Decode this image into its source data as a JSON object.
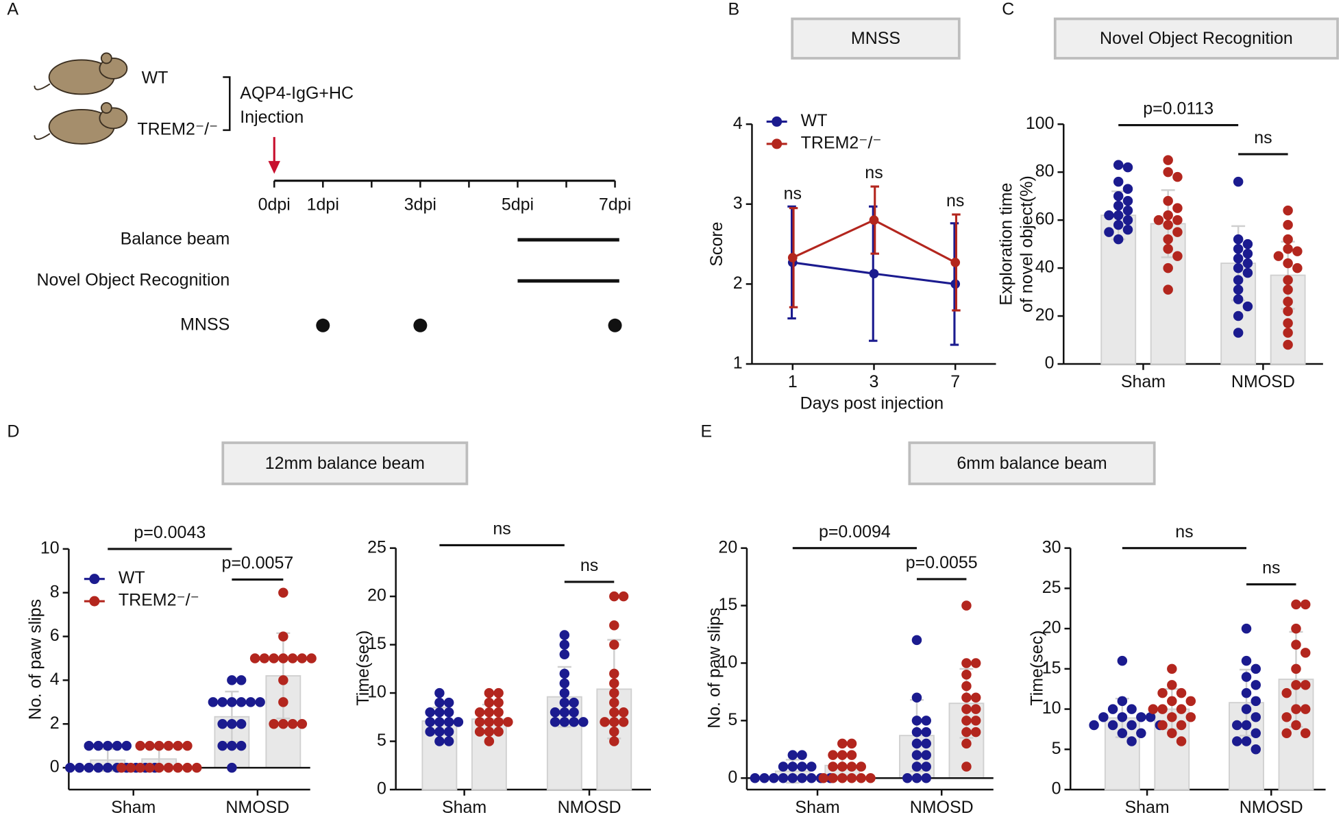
{
  "chart_data": [
    {
      "type": "timeline",
      "panel": "A",
      "subjects": [
        "WT",
        "TREM2⁻/⁻"
      ],
      "treatment": [
        "AQP4-IgG+HC",
        "Injection"
      ],
      "injection": 0,
      "xlim": [
        0,
        7
      ],
      "xticks": [
        {
          "value": 0,
          "label": "0dpi"
        },
        {
          "value": 1,
          "label": "1dpi"
        },
        {
          "value": 2,
          "label": null
        },
        {
          "value": 3,
          "label": "3dpi"
        },
        {
          "value": 4,
          "label": null
        },
        {
          "value": 5,
          "label": "5dpi"
        },
        {
          "value": 6,
          "label": null
        },
        {
          "value": 7,
          "label": "7dpi"
        }
      ],
      "rows": [
        {
          "label": "Balance beam",
          "span": [
            5,
            7
          ]
        },
        {
          "label": "Novel Object Recognition",
          "span": [
            5,
            7
          ]
        },
        {
          "label": "MNSS",
          "points": [
            1,
            3,
            7
          ]
        }
      ]
    },
    {
      "type": "line",
      "panel": "B",
      "title": "MNSS",
      "x_label": "Days post injection",
      "y_label": "Score",
      "categories": [
        "1",
        "3",
        "7"
      ],
      "ylim": [
        1,
        4
      ],
      "yticks": [
        1,
        2,
        3,
        4
      ],
      "legend": "upper left",
      "series": [
        {
          "name": "WT",
          "color": "#1b1b8f",
          "values": [
            2.27,
            2.13,
            2.0
          ],
          "errors": [
            0.7,
            0.84,
            0.76
          ]
        },
        {
          "name": "TREM2⁻/⁻",
          "color": "#b3261e",
          "values": [
            2.33,
            2.8,
            2.27
          ],
          "errors": [
            0.62,
            0.42,
            0.6
          ]
        }
      ],
      "annotations": [
        {
          "text": "ns",
          "category": 0,
          "y": 3.12
        },
        {
          "text": "ns",
          "category": 1,
          "y": 3.38
        },
        {
          "text": "ns",
          "category": 2,
          "y": 3.03
        }
      ]
    },
    {
      "type": "bar",
      "panel": "C",
      "title": "Novel Object Recognition",
      "y_label": [
        "Exploration time",
        "of novel object(%)"
      ],
      "categories": [
        "Sham",
        "NMOSD"
      ],
      "ylim": [
        0,
        100
      ],
      "yticks": [
        0,
        20,
        40,
        60,
        80,
        100
      ],
      "series": [
        {
          "color": "#1b1b8f",
          "values": [
            62,
            42
          ],
          "errors": [
            10,
            15.5
          ],
          "points": [
            [
              83,
              82,
              76,
              73,
              70,
              68,
              66,
              64,
              62,
              62,
              60,
              58,
              56,
              55,
              52
            ],
            [
              76,
              52,
              50,
              48,
              46,
              44,
              42,
              40,
              38,
              35,
              31,
              27,
              24,
              20,
              13
            ]
          ]
        },
        {
          "color": "#b3261e",
          "values": [
            58.5,
            37
          ],
          "errors": [
            14,
            14
          ],
          "points": [
            [
              85,
              80,
              78,
              68,
              65,
              62,
              60,
              60,
              58,
              55,
              52,
              48,
              45,
              40,
              31
            ],
            [
              64,
              58,
              52,
              48,
              47,
              45,
              42,
              40,
              35,
              31,
              26,
              22,
              17,
              13,
              8
            ]
          ]
        }
      ],
      "comparisons": [
        {
          "label": "p=0.0113",
          "from": [
            0,
            0
          ],
          "to": [
            1,
            0
          ],
          "y": 99.6
        },
        {
          "label": "ns",
          "from": [
            1,
            0
          ],
          "to": [
            1,
            1
          ],
          "y": 87.5
        }
      ]
    },
    {
      "type": "bar",
      "panel": "D",
      "title": "12mm balance beam",
      "y_label": "No. of paw slips",
      "categories": [
        "Sham",
        "NMOSD"
      ],
      "ylim": [
        -1,
        10
      ],
      "yticks": [
        0,
        2,
        4,
        6,
        8,
        10
      ],
      "zero_line": true,
      "legend": "upper left",
      "series": [
        {
          "name": "WT",
          "color": "#1b1b8f",
          "values": [
            0.35,
            2.33
          ],
          "errors": [
            0.5,
            1.15
          ],
          "points": [
            [
              1,
              1,
              1,
              1,
              1,
              0,
              0,
              0,
              0,
              0,
              0,
              0,
              0,
              0,
              0
            ],
            [
              4,
              4,
              3,
              3,
              3,
              3,
              3,
              3,
              2,
              2,
              2,
              1,
              1,
              1,
              0
            ]
          ]
        },
        {
          "name": "TREM2⁻/⁻",
          "color": "#b3261e",
          "values": [
            0.4,
            4.2
          ],
          "errors": [
            0.5,
            1.95
          ],
          "points": [
            [
              1,
              1,
              1,
              1,
              1,
              1,
              0,
              0,
              0,
              0,
              0,
              0,
              0,
              0,
              0
            ],
            [
              8,
              6,
              5,
              5,
              5,
              5,
              5,
              5,
              5,
              4,
              3,
              2,
              2,
              2,
              2
            ]
          ]
        }
      ],
      "comparisons": [
        {
          "label": "p=0.0043",
          "from": [
            0,
            0
          ],
          "to": [
            1,
            0
          ],
          "y": 10
        },
        {
          "label": "p=0.0057",
          "from": [
            1,
            0
          ],
          "to": [
            1,
            1
          ],
          "y": 8.6
        }
      ]
    },
    {
      "type": "bar",
      "y_label": "Time(sec)",
      "categories": [
        "Sham",
        "NMOSD"
      ],
      "ylim": [
        0,
        25
      ],
      "yticks": [
        0,
        5,
        10,
        15,
        20,
        25
      ],
      "series": [
        {
          "color": "#1b1b8f",
          "values": [
            7.1,
            9.6
          ],
          "errors": [
            1.4,
            3.1
          ],
          "points": [
            [
              10,
              9,
              9,
              8,
              8,
              8,
              7,
              7,
              7,
              7,
              6,
              6,
              6,
              5,
              5
            ],
            [
              16,
              15,
              14,
              12,
              11,
              10,
              9,
              9,
              8,
              8,
              8,
              7,
              7,
              7,
              7
            ]
          ]
        },
        {
          "color": "#b3261e",
          "values": [
            7.3,
            10.4
          ],
          "errors": [
            1.5,
            5.1
          ],
          "points": [
            [
              10,
              10,
              9,
              9,
              8,
              8,
              8,
              7,
              7,
              7,
              7,
              6,
              6,
              6,
              5
            ],
            [
              20,
              20,
              17,
              15,
              12,
              11,
              10,
              9,
              8,
              8,
              7,
              7,
              7,
              6,
              5
            ]
          ]
        }
      ],
      "comparisons": [
        {
          "label": "ns",
          "from": [
            0,
            0
          ],
          "to": [
            1,
            0
          ],
          "y": 25.3
        },
        {
          "label": "ns",
          "from": [
            1,
            0
          ],
          "to": [
            1,
            1
          ],
          "y": 21.5
        }
      ]
    },
    {
      "type": "bar",
      "panel": "E",
      "title": "6mm balance beam",
      "y_label": "No. of paw slips",
      "categories": [
        "Sham",
        "NMOSD"
      ],
      "ylim": [
        -1,
        20
      ],
      "yticks": [
        0,
        5,
        10,
        15,
        20
      ],
      "zero_line": true,
      "series": [
        {
          "color": "#1b1b8f",
          "values": [
            0.6,
            3.7
          ],
          "errors": [
            1.0,
            3.1
          ],
          "points": [
            [
              2,
              2,
              1,
              1,
              1,
              1,
              0,
              0,
              0,
              0,
              0,
              0,
              0,
              0,
              0
            ],
            [
              12,
              7,
              5,
              5,
              4,
              4,
              3,
              3,
              2,
              2,
              1,
              1,
              0,
              0,
              0
            ]
          ]
        },
        {
          "color": "#b3261e",
          "values": [
            1.1,
            6.5
          ],
          "errors": [
            0.9,
            3.0
          ],
          "points": [
            [
              3,
              3,
              2,
              2,
              2,
              1,
              1,
              1,
              1,
              0,
              0,
              0,
              0,
              0,
              0
            ],
            [
              15,
              10,
              10,
              9,
              8,
              7,
              7,
              6,
              6,
              5,
              5,
              4,
              4,
              3,
              1
            ]
          ]
        }
      ],
      "comparisons": [
        {
          "label": "p=0.0094",
          "from": [
            0,
            0
          ],
          "to": [
            1,
            0
          ],
          "y": 20
        },
        {
          "label": "p=0.0055",
          "from": [
            1,
            0
          ],
          "to": [
            1,
            1
          ],
          "y": 17.3
        }
      ]
    },
    {
      "type": "bar",
      "y_label": "Time(sec)",
      "categories": [
        "Sham",
        "NMOSD"
      ],
      "ylim": [
        0,
        30
      ],
      "yticks": [
        0,
        5,
        10,
        15,
        20,
        25,
        30
      ],
      "series": [
        {
          "color": "#1b1b8f",
          "values": [
            8.9,
            10.8
          ],
          "errors": [
            2.4,
            4.1
          ],
          "points": [
            [
              16,
              11,
              10,
              10,
              9,
              9,
              9,
              9,
              8,
              8,
              8,
              8,
              7,
              7,
              6
            ],
            [
              20,
              16,
              15,
              14,
              13,
              12,
              11,
              10,
              9,
              8,
              8,
              7,
              6,
              6,
              5
            ]
          ]
        },
        {
          "color": "#b3261e",
          "values": [
            10.0,
            13.7
          ],
          "errors": [
            2.5,
            5.9
          ],
          "points": [
            [
              15,
              13,
              12,
              12,
              11,
              11,
              10,
              10,
              10,
              9,
              9,
              8,
              8,
              7,
              6
            ],
            [
              23,
              23,
              20,
              18,
              17,
              15,
              13,
              13,
              12,
              10,
              10,
              9,
              8,
              7,
              7
            ]
          ]
        }
      ],
      "comparisons": [
        {
          "label": "ns",
          "from": [
            0,
            0
          ],
          "to": [
            1,
            0
          ],
          "y": 30
        },
        {
          "label": "ns",
          "from": [
            1,
            0
          ],
          "to": [
            1,
            1
          ],
          "y": 25.5
        }
      ]
    }
  ]
}
